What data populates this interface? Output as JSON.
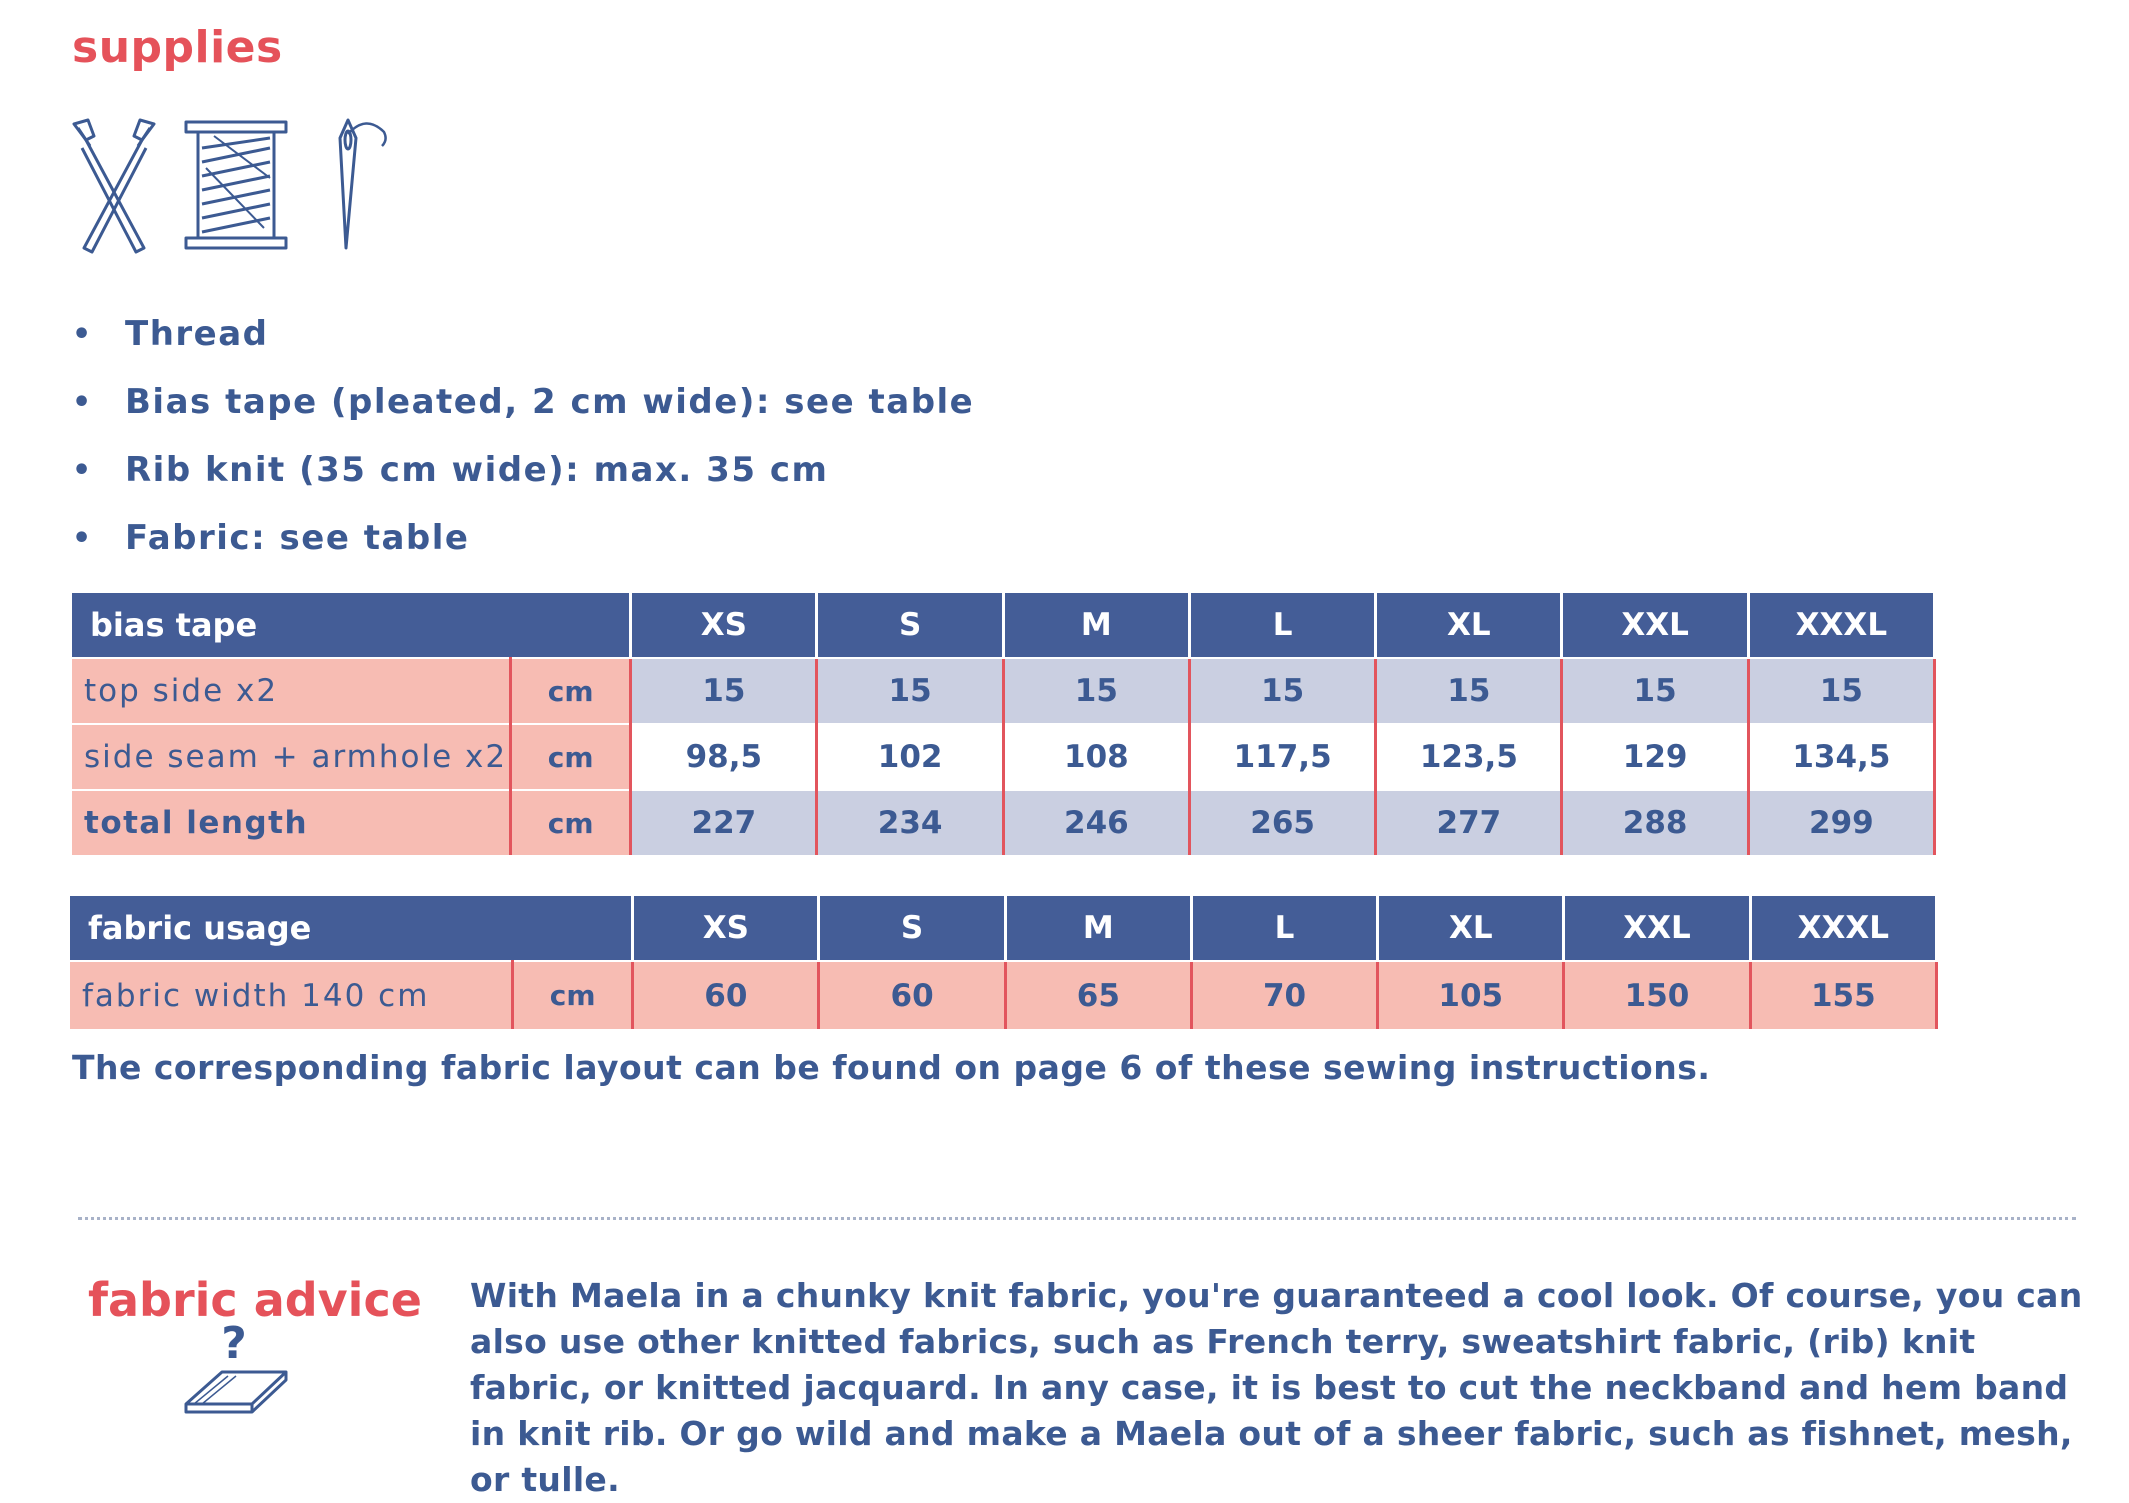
{
  "title": "supplies",
  "icons": [
    "scissors-icon",
    "thread-spool-icon",
    "needle-icon"
  ],
  "supplies": [
    "Thread",
    "Bias tape (pleated, 2 cm wide): see table",
    "Rib knit (35 cm wide): max. 35 cm",
    "Fabric: see table"
  ],
  "bias_table": {
    "header": "bias tape",
    "sizes": [
      "XS",
      "S",
      "M",
      "L",
      "XL",
      "XXL",
      "XXXL"
    ],
    "rows": [
      {
        "label": "top side x2",
        "unit": "cm",
        "values": [
          "15",
          "15",
          "15",
          "15",
          "15",
          "15",
          "15"
        ]
      },
      {
        "label": "side seam + armhole x2",
        "unit": "cm",
        "values": [
          "98,5",
          "102",
          "108",
          "117,5",
          "123,5",
          "129",
          "134,5"
        ]
      },
      {
        "label": "total length",
        "unit": "cm",
        "values": [
          "227",
          "234",
          "246",
          "265",
          "277",
          "288",
          "299"
        ]
      }
    ]
  },
  "fabric_table": {
    "header": "fabric usage",
    "sizes": [
      "XS",
      "S",
      "M",
      "L",
      "XL",
      "XXL",
      "XXXL"
    ],
    "rows": [
      {
        "label": "fabric width 140 cm",
        "unit": "cm",
        "values": [
          "60",
          "60",
          "65",
          "70",
          "105",
          "150",
          "155"
        ]
      }
    ]
  },
  "footnote": "The corresponding fabric layout can be found on page 6 of these sewing instructions.",
  "advice": {
    "title": "fabric advice",
    "icon": "folded-fabric-question-icon",
    "text": "With Maela in a chunky knit fabric, you're guaranteed a cool look. Of course, you can also use other knitted fabrics, such as French terry, sweatshirt fabric, (rib) knit fabric, or knitted jacquard. In any case, it is best to cut the neckband and hem band in knit rib. Or go wild and make a Maela out of a sheer fabric, such as fishnet, mesh, or tulle."
  },
  "colors": {
    "accent": "#e5525a",
    "text": "#3c5a92",
    "header": "#445d97",
    "pink": "#f7bcb3",
    "lavender": "#cacfe1"
  }
}
